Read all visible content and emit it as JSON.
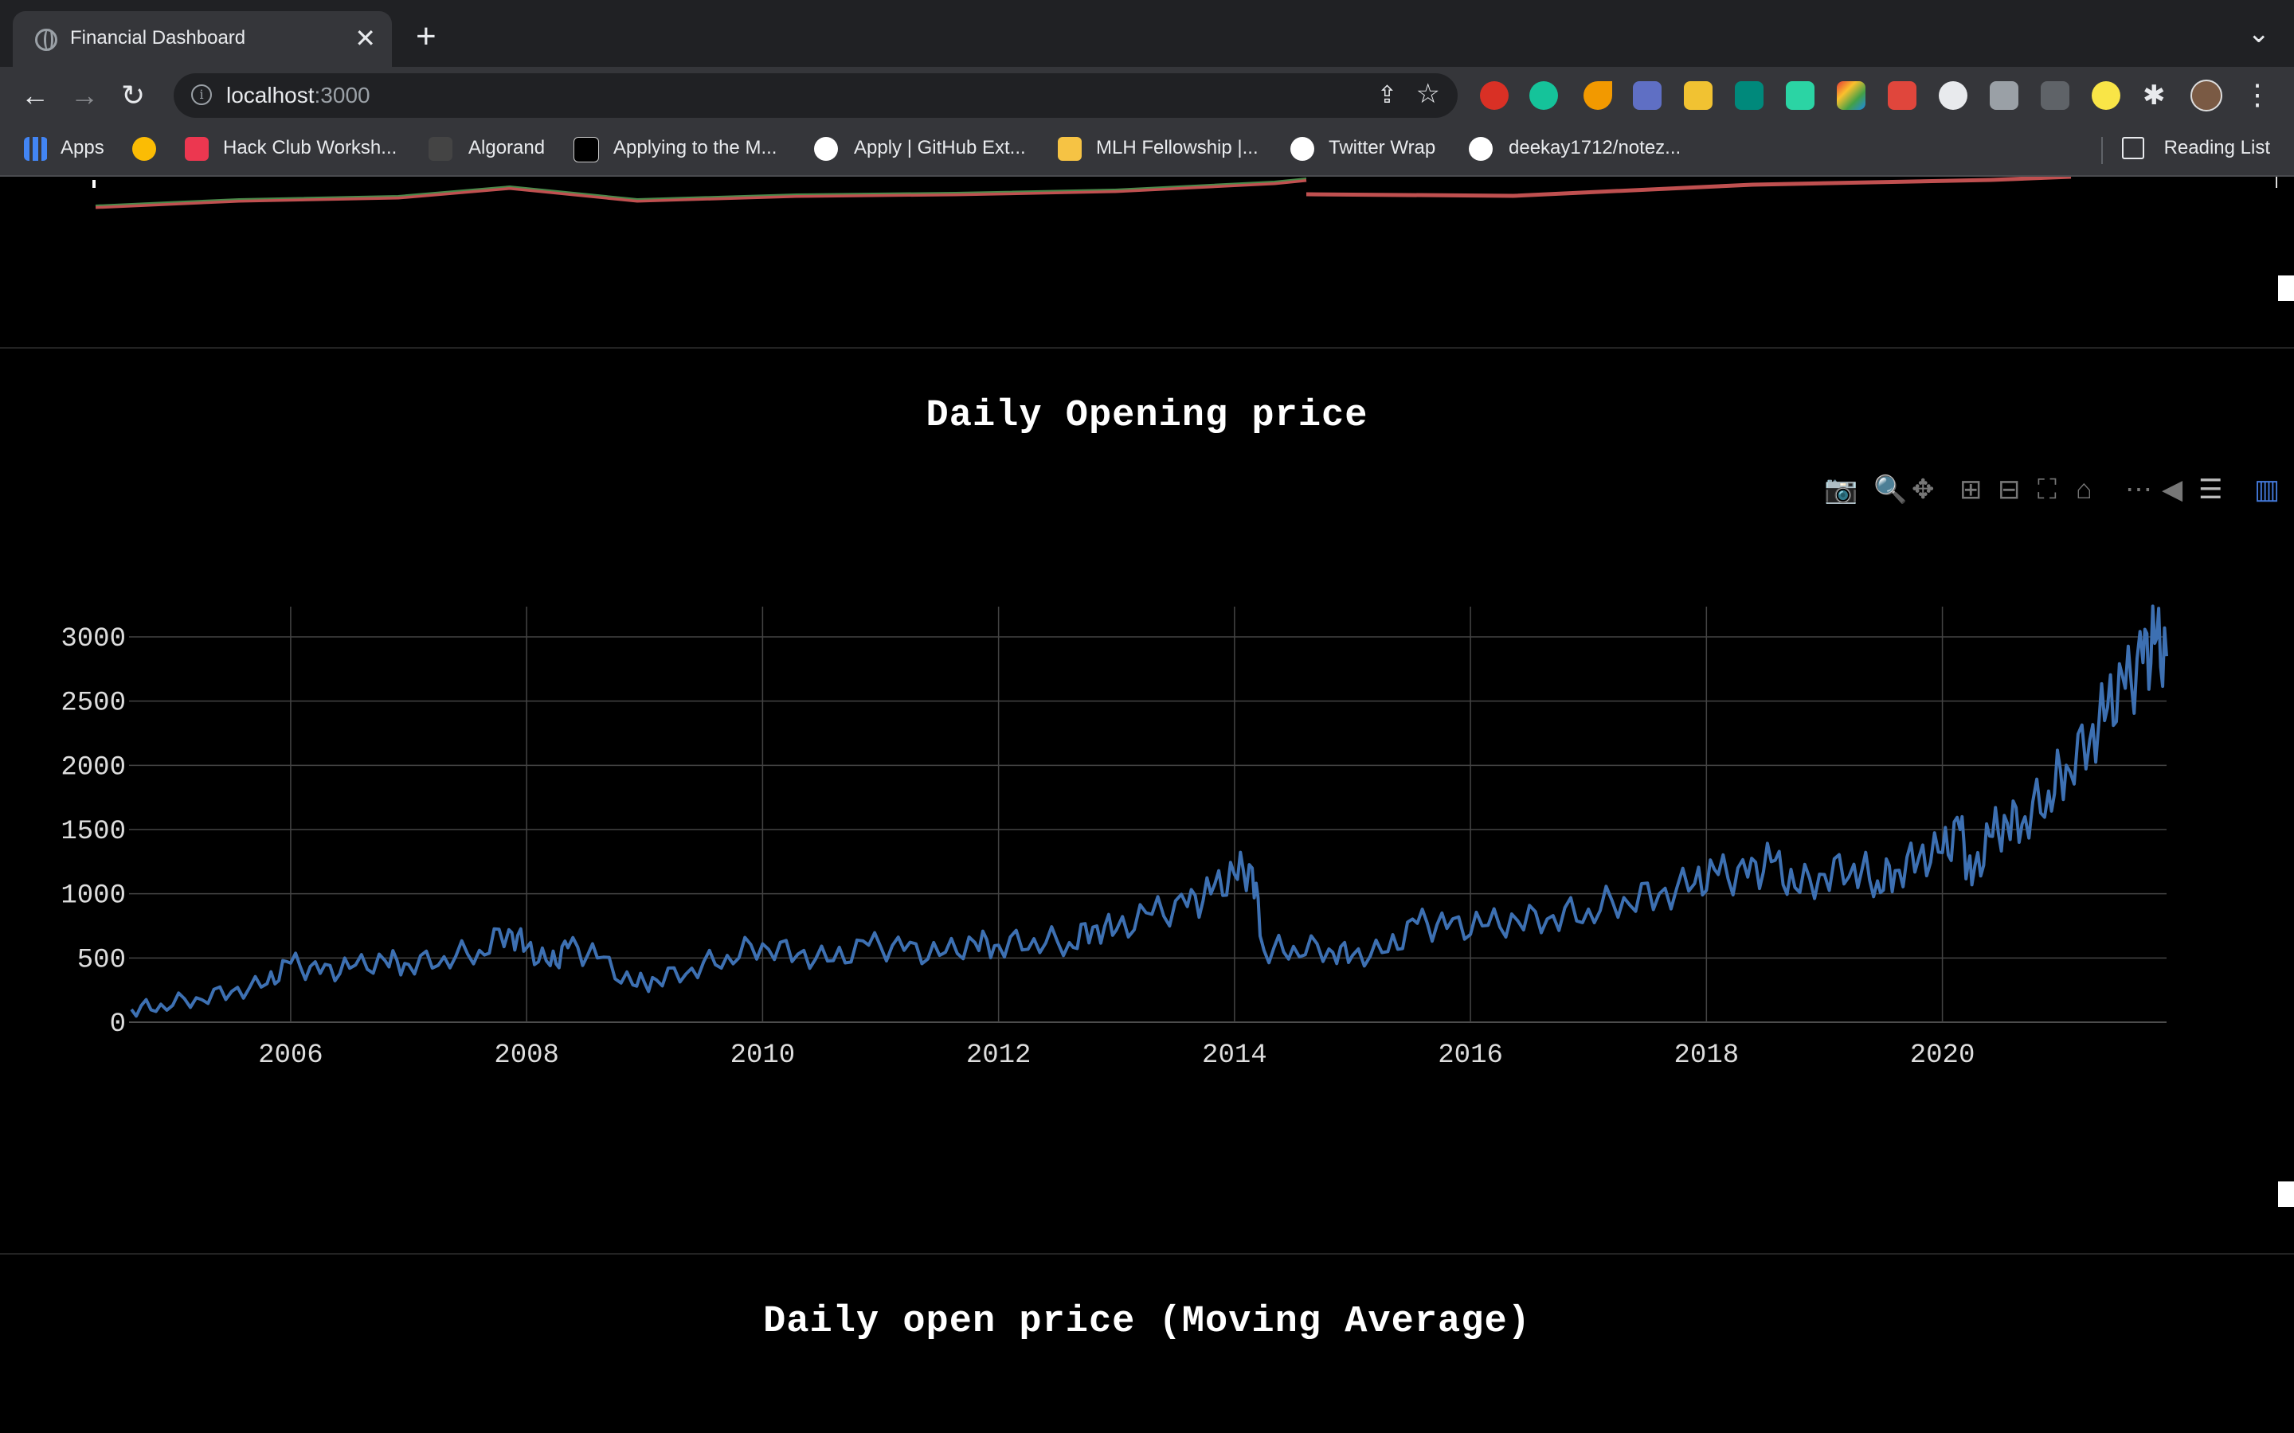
{
  "browser": {
    "tab_title": "Financial Dashboard",
    "url_host": "localhost",
    "url_port": ":3000",
    "bookmarks": [
      {
        "label": "Apps",
        "color": "#4285f4"
      },
      {
        "label": "",
        "color": "#fbbc04"
      },
      {
        "label": "Hack Club Worksh...",
        "color": "#ec3750"
      },
      {
        "label": "Algorand",
        "color": "#444444"
      },
      {
        "label": "Applying to the M...",
        "color": "#000000"
      },
      {
        "label": "Apply | GitHub Ext...",
        "color": "#ffffff"
      },
      {
        "label": "MLH Fellowship |...",
        "color": "#f6c344"
      },
      {
        "label": "Twitter Wrap",
        "color": "#ffffff"
      },
      {
        "label": "deekay1712/notez...",
        "color": "#ffffff"
      }
    ],
    "reading_list": "Reading List"
  },
  "sections": {
    "opening_title": "Daily Opening price",
    "moving_avg_title": "Daily open price (Moving Average)"
  },
  "chart_data": {
    "type": "line",
    "title": "Daily Opening price",
    "xlabel": "",
    "ylabel": "",
    "x_ticks": [
      "2006",
      "2008",
      "2010",
      "2012",
      "2014",
      "2016",
      "2018",
      "2020"
    ],
    "y_ticks": [
      "0",
      "500",
      "1000",
      "1500",
      "2000",
      "2500",
      "3000"
    ],
    "xlim": [
      2004.63,
      2021.9
    ],
    "ylim": [
      0,
      3000
    ],
    "grid": true,
    "line_color": "#3d70b2",
    "series": [
      {
        "name": "",
        "x": [
          2004.65,
          2004.9,
          2005.2,
          2005.5,
          2005.8,
          2006.0,
          2006.25,
          2006.5,
          2006.8,
          2007.0,
          2007.3,
          2007.6,
          2007.85,
          2008.0,
          2008.2,
          2008.35,
          2008.6,
          2008.9,
          2009.1,
          2009.4,
          2009.7,
          2010.0,
          2010.3,
          2010.6,
          2010.9,
          2011.2,
          2011.5,
          2011.8,
          2012.0,
          2012.3,
          2012.6,
          2012.8,
          2013.0,
          2013.3,
          2013.6,
          2013.8,
          2014.0,
          2014.15,
          2014.25,
          2014.5,
          2014.8,
          2015.0,
          2015.3,
          2015.55,
          2015.8,
          2016.1,
          2016.4,
          2016.7,
          2017.0,
          2017.3,
          2017.6,
          2017.9,
          2018.1,
          2018.35,
          2018.55,
          2018.75,
          2019.0,
          2019.25,
          2019.45,
          2019.6,
          2019.8,
          2020.0,
          2020.15,
          2020.25,
          2020.4,
          2020.55,
          2020.7,
          2020.9,
          2021.05,
          2021.25,
          2021.4,
          2021.55,
          2021.7,
          2021.8,
          2021.9
        ],
        "y": [
          100,
          140,
          190,
          240,
          300,
          460,
          380,
          420,
          480,
          450,
          510,
          560,
          720,
          580,
          440,
          580,
          500,
          290,
          330,
          420,
          520,
          610,
          530,
          480,
          600,
          560,
          520,
          620,
          600,
          650,
          620,
          740,
          720,
          840,
          900,
          1000,
          1150,
          1200,
          560,
          590,
          570,
          520,
          550,
          770,
          730,
          750,
          790,
          830,
          880,
          970,
          1000,
          1080,
          1150,
          1130,
          1250,
          1050,
          1150,
          1230,
          1100,
          1180,
          1280,
          1320,
          1500,
          1070,
          1450,
          1550,
          1600,
          1800,
          2000,
          2200,
          2450,
          2600,
          2800,
          2950,
          2850
        ]
      }
    ]
  }
}
